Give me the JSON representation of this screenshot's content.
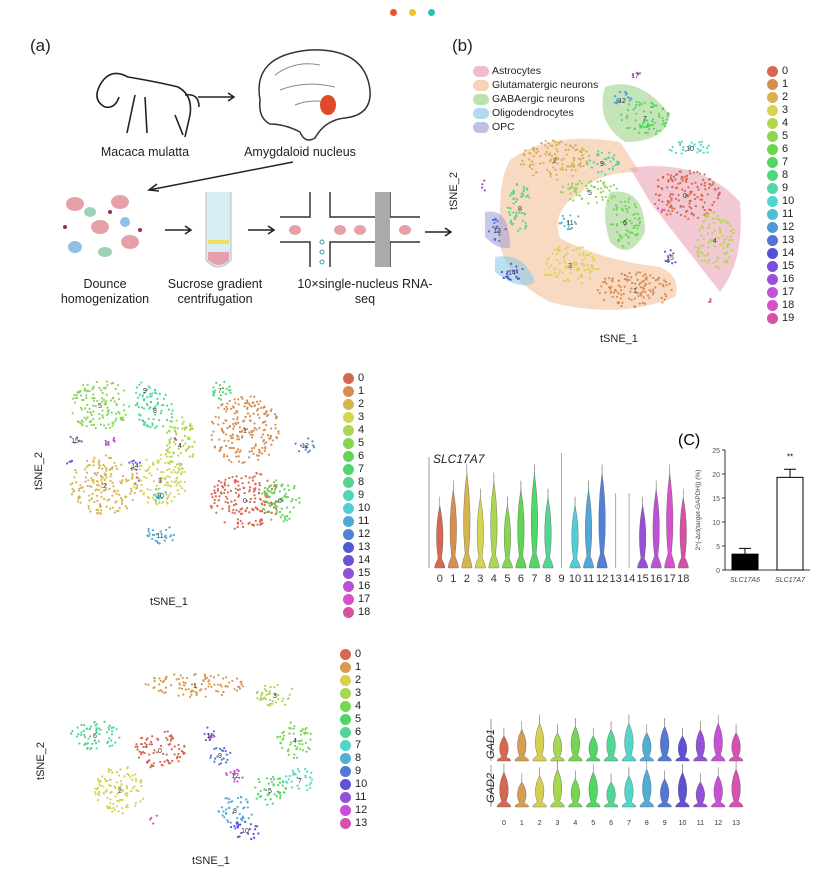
{
  "header_dots": [
    "#e8552b",
    "#f2c12e",
    "#2fc0b0"
  ],
  "panel_a": {
    "label": "(a)",
    "species": "Macaca mulatta",
    "region": "Amygdaloid nucleus",
    "steps": [
      "Dounce homogenization",
      "Sucrose gradient centrifugation",
      "10×single-nucleus RNA-seq"
    ]
  },
  "panel_b": {
    "label": "(b)",
    "xlabel": "tSNE_1",
    "ylabel": "tSNE_2",
    "cell_types": [
      {
        "name": "Astrocytes",
        "color": "#eaa3b5"
      },
      {
        "name": "Glutamatergic neurons",
        "color": "#f3c09a"
      },
      {
        "name": "GABAergic neurons",
        "color": "#9fd48a"
      },
      {
        "name": "Oligodendrocytes",
        "color": "#8ecbe8"
      },
      {
        "name": "OPC",
        "color": "#a9a2d6"
      }
    ],
    "clusters": [
      "0",
      "1",
      "2",
      "3",
      "4",
      "5",
      "6",
      "7",
      "8",
      "9",
      "10",
      "11",
      "12",
      "13",
      "14",
      "15",
      "16",
      "17",
      "18",
      "19"
    ]
  },
  "panel_2": {
    "xlabel": "tSNE_1",
    "ylabel": "tSNE_2",
    "clusters": [
      "0",
      "1",
      "2",
      "3",
      "4",
      "5",
      "6",
      "7",
      "8",
      "9",
      "10",
      "11",
      "12",
      "13",
      "14",
      "15",
      "16",
      "17",
      "18"
    ]
  },
  "panel_3": {
    "xlabel": "tSNE_1",
    "ylabel": "tSNE_2",
    "clusters": [
      "0",
      "1",
      "2",
      "3",
      "4",
      "5",
      "6",
      "7",
      "8",
      "9",
      "10",
      "11",
      "12",
      "13"
    ]
  },
  "violin_slc": {
    "gene": "SLC17A7",
    "categories": [
      "0",
      "1",
      "2",
      "3",
      "4",
      "5",
      "6",
      "7",
      "8",
      "9",
      "10",
      "11",
      "12",
      "13",
      "14",
      "15",
      "16",
      "17",
      "18"
    ]
  },
  "violin_gad": {
    "genes": [
      "GAD1",
      "GAD2"
    ],
    "categories": [
      "0",
      "1",
      "2",
      "3",
      "4",
      "5",
      "6",
      "7",
      "8",
      "9",
      "10",
      "11",
      "12",
      "13"
    ]
  },
  "chart_data": {
    "type": "bar",
    "label": "(C)",
    "categories": [
      "SLC17A6",
      "SLC17A7"
    ],
    "values": [
      3.3,
      19.3
    ],
    "errors": [
      1.2,
      1.7
    ],
    "ylabel": "2^(-Δct(target-GAPDH)) (%)",
    "ylim": [
      0,
      25
    ],
    "yticks": [
      "0",
      "5",
      "10",
      "15",
      "20",
      "25"
    ],
    "annotation": "**",
    "bar_colors": [
      "#000000",
      "#ffffff"
    ]
  }
}
